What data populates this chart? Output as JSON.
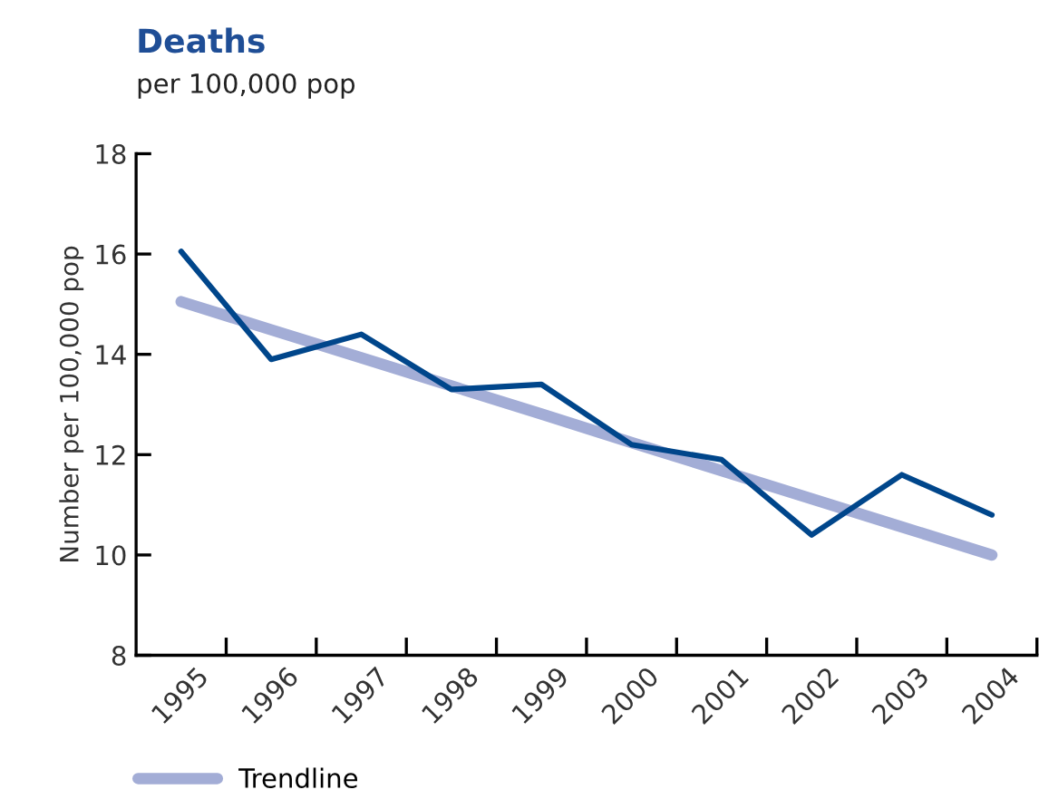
{
  "chart_data": {
    "type": "line",
    "title": "Deaths",
    "subtitle": "per 100,000 pop",
    "ylabel": "Number per 100,000 pop",
    "categories": [
      "1995",
      "1996",
      "1997",
      "1998",
      "1999",
      "2000",
      "2001",
      "2002",
      "2003",
      "2004"
    ],
    "series": [
      {
        "color": "#00468b",
        "values": [
          16.05,
          13.9,
          14.4,
          13.3,
          13.4,
          12.2,
          11.9,
          10.4,
          11.6,
          10.8
        ]
      },
      {
        "name": "Trendline",
        "color": "#a3add6",
        "values": [
          15.05,
          14.49,
          13.93,
          13.37,
          12.81,
          12.24,
          11.68,
          11.12,
          10.56,
          10.0
        ]
      }
    ],
    "ylim": [
      8,
      18
    ],
    "yticks": [
      8,
      10,
      12,
      14,
      16,
      18
    ],
    "grid": false,
    "legend": "bottom left",
    "marker": "none",
    "line_style": "solid"
  }
}
